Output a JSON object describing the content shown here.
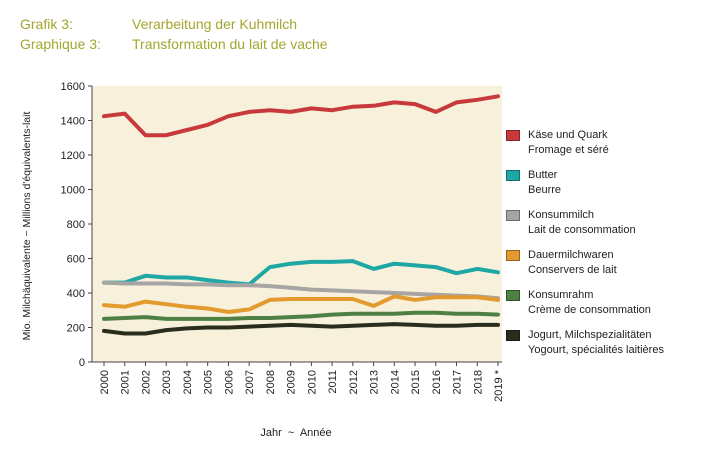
{
  "titles": [
    {
      "label": "Grafik 3:",
      "text": "Verarbeitung der Kuhmilch"
    },
    {
      "label": "Graphique 3:",
      "text": "Transformation du lait de vache"
    }
  ],
  "chart_data": {
    "type": "line",
    "x": [
      "2000",
      "2001",
      "2002",
      "2003",
      "2004",
      "2005",
      "2006",
      "2007",
      "2008",
      "2009",
      "2010",
      "2011",
      "2012",
      "2013",
      "2014",
      "2015",
      "2016",
      "2017",
      "2018",
      "2019 *"
    ],
    "ylabel": "Mio. Milchäquivalente ~ Millions d'équivalents-lait",
    "xlabel": "Jahr  ~  Année",
    "ylim": [
      0,
      1600
    ],
    "yticks": [
      0,
      200,
      400,
      600,
      800,
      1000,
      1200,
      1400,
      1600
    ],
    "grid": false,
    "background": "#f7f1dc",
    "legend_position": "right",
    "series": [
      {
        "name": "Käse und Quark",
        "name2": "Fromage et séré",
        "color": "#c8393b",
        "values": [
          1425,
          1440,
          1315,
          1315,
          1345,
          1375,
          1425,
          1450,
          1460,
          1450,
          1470,
          1460,
          1480,
          1485,
          1505,
          1495,
          1450,
          1505,
          1520,
          1540
        ]
      },
      {
        "name": "Butter",
        "name2": "Beurre",
        "color": "#1fa7a6",
        "values": [
          460,
          460,
          500,
          490,
          490,
          475,
          460,
          450,
          550,
          570,
          580,
          580,
          585,
          540,
          570,
          560,
          550,
          515,
          540,
          520
        ]
      },
      {
        "name": "Konsummilch",
        "name2": "Lait de consommation",
        "color": "#a7a5a4",
        "values": [
          460,
          455,
          455,
          455,
          450,
          450,
          445,
          445,
          440,
          430,
          420,
          415,
          410,
          405,
          400,
          395,
          390,
          385,
          380,
          370
        ]
      },
      {
        "name": "Dauermilchwaren",
        "name2": "Conservers de lait",
        "color": "#e39a2f",
        "values": [
          330,
          320,
          350,
          335,
          320,
          310,
          290,
          305,
          360,
          365,
          365,
          365,
          365,
          325,
          380,
          360,
          375,
          375,
          375,
          360
        ]
      },
      {
        "name": "Konsumrahm",
        "name2": "Crème de consommation",
        "color": "#4e7f43",
        "values": [
          250,
          255,
          260,
          250,
          250,
          250,
          250,
          255,
          255,
          260,
          265,
          275,
          280,
          280,
          280,
          285,
          285,
          280,
          280,
          275
        ]
      },
      {
        "name": "Jogurt, Milchspezialitäten",
        "name2": "Yogourt, spécialités laitières",
        "color": "#2a2c1c",
        "values": [
          180,
          165,
          165,
          185,
          195,
          200,
          200,
          205,
          210,
          215,
          210,
          205,
          210,
          215,
          220,
          215,
          210,
          210,
          215,
          215
        ]
      }
    ]
  }
}
